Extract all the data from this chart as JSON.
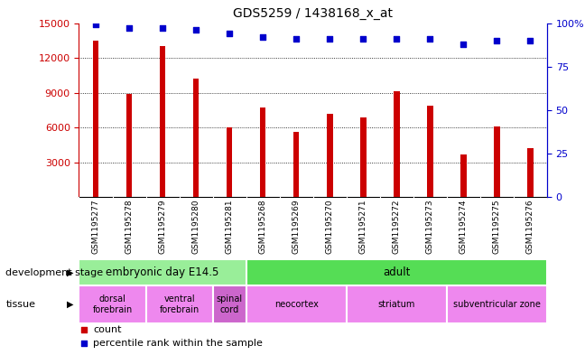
{
  "title": "GDS5259 / 1438168_x_at",
  "samples": [
    "GSM1195277",
    "GSM1195278",
    "GSM1195279",
    "GSM1195280",
    "GSM1195281",
    "GSM1195268",
    "GSM1195269",
    "GSM1195270",
    "GSM1195271",
    "GSM1195272",
    "GSM1195273",
    "GSM1195274",
    "GSM1195275",
    "GSM1195276"
  ],
  "counts": [
    13500,
    8900,
    13000,
    10200,
    6000,
    7700,
    5600,
    7200,
    6900,
    9100,
    7900,
    3700,
    6100,
    4200
  ],
  "percentiles": [
    99,
    97,
    97,
    96,
    94,
    92,
    91,
    91,
    91,
    91,
    91,
    88,
    90,
    90
  ],
  "bar_color": "#cc0000",
  "dot_color": "#0000cc",
  "ylim_left": [
    0,
    15000
  ],
  "ylim_right": [
    0,
    100
  ],
  "yticks_left": [
    3000,
    6000,
    9000,
    12000,
    15000
  ],
  "yticks_right": [
    0,
    25,
    50,
    75,
    100
  ],
  "development_stages": [
    {
      "label": "embryonic day E14.5",
      "start": 0,
      "end": 4,
      "color": "#99ee99"
    },
    {
      "label": "adult",
      "start": 5,
      "end": 13,
      "color": "#55dd55"
    }
  ],
  "tissues": [
    {
      "label": "dorsal\nforebrain",
      "start": 0,
      "end": 1,
      "color": "#ee88ee"
    },
    {
      "label": "ventral\nforebrain",
      "start": 2,
      "end": 3,
      "color": "#ee88ee"
    },
    {
      "label": "spinal\ncord",
      "start": 4,
      "end": 4,
      "color": "#cc66cc"
    },
    {
      "label": "neocortex",
      "start": 5,
      "end": 7,
      "color": "#ee88ee"
    },
    {
      "label": "striatum",
      "start": 8,
      "end": 10,
      "color": "#ee88ee"
    },
    {
      "label": "subventricular zone",
      "start": 11,
      "end": 13,
      "color": "#ee88ee"
    }
  ],
  "legend_count_label": "count",
  "legend_percentile_label": "percentile rank within the sample",
  "dev_stage_label": "development stage",
  "tissue_label": "tissue",
  "bar_width": 0.18,
  "background_color": "#ffffff",
  "xticklabel_bg": "#c8c8c8"
}
